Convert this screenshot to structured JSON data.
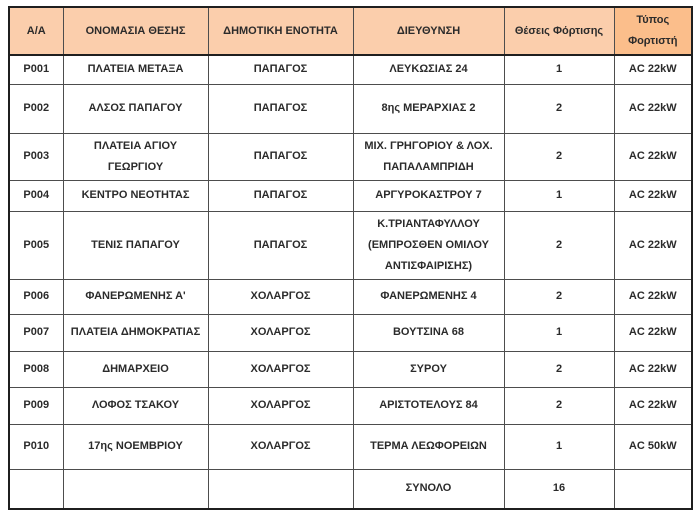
{
  "table": {
    "columns": [
      {
        "key": "id",
        "label": "Α/Α"
      },
      {
        "key": "name",
        "label": "ΟΝΟΜΑΣΙΑ ΘΕΣΗΣ"
      },
      {
        "key": "unit",
        "label": "ΔΗΜΟΤΙΚΗ ΕΝΟΤΗΤΑ"
      },
      {
        "key": "address",
        "label": "ΔΙΕΥΘΥΝΣΗ"
      },
      {
        "key": "spots",
        "label": "Θέσεις Φόρτισης"
      },
      {
        "key": "charger",
        "label": "Τύπος Φορτιστή"
      }
    ],
    "rows": [
      {
        "id": "P001",
        "name": "ΠΛΑΤΕΙΑ ΜΕΤΑΞΑ",
        "unit": "ΠΑΠΑΓΟΣ",
        "address": "ΛΕΥΚΩΣΙΑΣ 24",
        "spots": "1",
        "charger": "AC 22kW"
      },
      {
        "id": "P002",
        "name": "ΑΛΣΟΣ ΠΑΠΑΓΟΥ",
        "unit": "ΠΑΠΑΓΟΣ",
        "address": "8ης ΜΕΡΑΡΧΙΑΣ 2",
        "spots": "2",
        "charger": "AC 22kW"
      },
      {
        "id": "P003",
        "name": "ΠΛΑΤΕΙΑ ΑΓΙΟΥ ΓΕΩΡΓΙΟΥ",
        "unit": "ΠΑΠΑΓΟΣ",
        "address": "ΜΙΧ. ΓΡΗΓΟΡΙΟΥ & ΛΟΧ. ΠΑΠΑΛΑΜΠΡΙΔΗ",
        "spots": "2",
        "charger": "AC 22kW"
      },
      {
        "id": "P004",
        "name": "ΚΕΝΤΡΟ ΝΕΟΤΗΤΑΣ",
        "unit": "ΠΑΠΑΓΟΣ",
        "address": "ΑΡΓΥΡΟΚΑΣΤΡΟΥ 7",
        "spots": "1",
        "charger": "AC 22kW"
      },
      {
        "id": "P005",
        "name": "ΤΕΝΙΣ ΠΑΠΑΓΟΥ",
        "unit": "ΠΑΠΑΓΟΣ",
        "address": "Κ.ΤΡΙΑΝΤΑΦΥΛΛΟΥ (ΕΜΠΡΟΣΘΕΝ ΟΜΙΛΟΥ ΑΝΤΙΣΦΑΙΡΙΣΗΣ)",
        "spots": "2",
        "charger": "AC 22kW"
      },
      {
        "id": "P006",
        "name": "ΦΑΝΕΡΩΜΕΝΗΣ Α'",
        "unit": "ΧΟΛΑΡΓΟΣ",
        "address": "ΦΑΝΕΡΩΜΕΝΗΣ 4",
        "spots": "2",
        "charger": "AC 22kW"
      },
      {
        "id": "P007",
        "name": "ΠΛΑΤΕΙΑ ΔΗΜΟΚΡΑΤΙΑΣ",
        "unit": "ΧΟΛΑΡΓΟΣ",
        "address": "ΒΟΥΤΣΙΝΑ 68",
        "spots": "1",
        "charger": "AC 22kW"
      },
      {
        "id": "P008",
        "name": "ΔΗΜΑΡΧΕΙΟ",
        "unit": "ΧΟΛΑΡΓΟΣ",
        "address": "ΣΥΡΟΥ",
        "spots": "2",
        "charger": "AC 22kW"
      },
      {
        "id": "P009",
        "name": "ΛΟΦΟΣ ΤΣΑΚΟΥ",
        "unit": "ΧΟΛΑΡΓΟΣ",
        "address": "ΑΡΙΣΤΟΤΕΛΟΥΣ 84",
        "spots": "2",
        "charger": "AC 22kW"
      },
      {
        "id": "P010",
        "name": "17ης ΝΟΕΜΒΡΙΟΥ",
        "unit": "ΧΟΛΑΡΓΟΣ",
        "address": "ΤΕΡΜΑ ΛΕΩΦΟΡΕΙΩΝ",
        "spots": "1",
        "charger": "AC 50kW"
      }
    ],
    "total_row": {
      "id": "",
      "name": "",
      "unit": "",
      "label": "ΣΥΝΟΛΟ",
      "total_spots": "16",
      "charger": ""
    }
  },
  "colors": {
    "header_bg": "#fbceac",
    "header_last_bg": "#fbbe8b",
    "border_inner": "#4d4d4d",
    "border_outer": "#1f1f1f",
    "text": "#2b2b2b",
    "page_bg": "#ffffff"
  }
}
